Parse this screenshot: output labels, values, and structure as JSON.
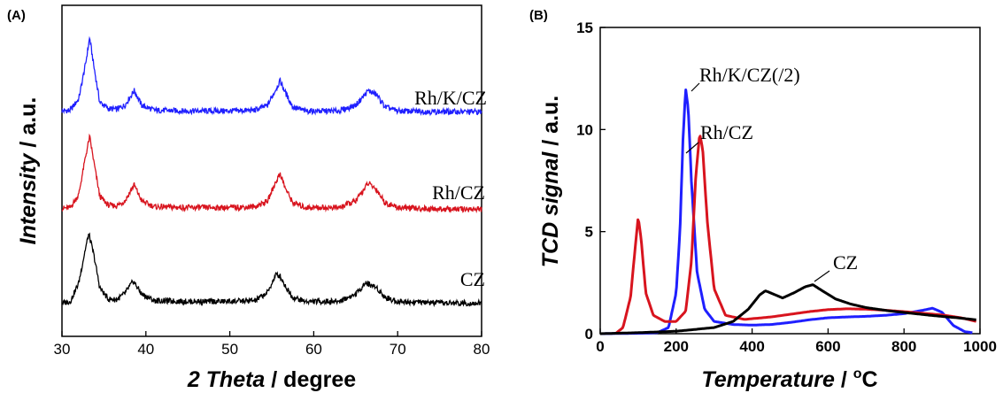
{
  "chart_data": [
    {
      "panel_label": "(A)",
      "type": "line",
      "xlabel_italic": "2 Theta",
      "xlabel_rest": " / degree",
      "ylabel_italic": "Intensity",
      "ylabel_rest": " / a.u.",
      "xlim": [
        30,
        80
      ],
      "xticks": [
        "30",
        "40",
        "50",
        "60",
        "70",
        "80"
      ],
      "y_ticks_shown": false,
      "series": [
        {
          "name": "Rh/K/CZ",
          "color": "#1f1fff",
          "offset": 2,
          "points": [
            [
              30,
              0.05
            ],
            [
              31,
              0.06
            ],
            [
              32,
              0.2
            ],
            [
              32.8,
              0.62
            ],
            [
              33.3,
              0.95
            ],
            [
              33.8,
              0.6
            ],
            [
              34.5,
              0.16
            ],
            [
              35.5,
              0.08
            ],
            [
              36.5,
              0.07
            ],
            [
              37.5,
              0.12
            ],
            [
              38.6,
              0.3
            ],
            [
              39.5,
              0.12
            ],
            [
              41,
              0.06
            ],
            [
              45,
              0.05
            ],
            [
              50,
              0.05
            ],
            [
              53,
              0.06
            ],
            [
              54.5,
              0.12
            ],
            [
              55.5,
              0.32
            ],
            [
              56,
              0.42
            ],
            [
              56.6,
              0.28
            ],
            [
              57.5,
              0.1
            ],
            [
              59,
              0.05
            ],
            [
              63,
              0.05
            ],
            [
              65,
              0.12
            ],
            [
              66.5,
              0.3
            ],
            [
              67.5,
              0.25
            ],
            [
              68.5,
              0.1
            ],
            [
              70,
              0.05
            ],
            [
              75,
              0.04
            ],
            [
              80,
              0.04
            ]
          ]
        },
        {
          "name": "Rh/CZ",
          "color": "#d8141e",
          "offset": 1,
          "points": [
            [
              30,
              0.05
            ],
            [
              31,
              0.06
            ],
            [
              32,
              0.22
            ],
            [
              32.8,
              0.68
            ],
            [
              33.3,
              0.93
            ],
            [
              33.8,
              0.62
            ],
            [
              34.5,
              0.2
            ],
            [
              35.5,
              0.09
            ],
            [
              36.5,
              0.08
            ],
            [
              37.5,
              0.14
            ],
            [
              38.6,
              0.34
            ],
            [
              39.5,
              0.14
            ],
            [
              41,
              0.07
            ],
            [
              45,
              0.06
            ],
            [
              50,
              0.06
            ],
            [
              53,
              0.07
            ],
            [
              54.5,
              0.14
            ],
            [
              55.5,
              0.38
            ],
            [
              56,
              0.48
            ],
            [
              56.6,
              0.3
            ],
            [
              57.5,
              0.12
            ],
            [
              59,
              0.06
            ],
            [
              63,
              0.06
            ],
            [
              65,
              0.14
            ],
            [
              66.5,
              0.36
            ],
            [
              67.5,
              0.28
            ],
            [
              68.5,
              0.12
            ],
            [
              70,
              0.06
            ],
            [
              75,
              0.04
            ],
            [
              80,
              0.04
            ]
          ]
        },
        {
          "name": "CZ",
          "color": "#000000",
          "offset": 0,
          "points": [
            [
              30,
              0.05
            ],
            [
              31,
              0.07
            ],
            [
              32,
              0.3
            ],
            [
              32.8,
              0.72
            ],
            [
              33.2,
              0.9
            ],
            [
              33.8,
              0.64
            ],
            [
              34.5,
              0.24
            ],
            [
              35.5,
              0.1
            ],
            [
              36.5,
              0.09
            ],
            [
              37.5,
              0.17
            ],
            [
              38.5,
              0.32
            ],
            [
              39.5,
              0.16
            ],
            [
              41,
              0.08
            ],
            [
              45,
              0.07
            ],
            [
              50,
              0.07
            ],
            [
              53,
              0.08
            ],
            [
              54.5,
              0.18
            ],
            [
              55.5,
              0.4
            ],
            [
              56,
              0.38
            ],
            [
              56.6,
              0.26
            ],
            [
              57.5,
              0.12
            ],
            [
              59,
              0.07
            ],
            [
              63,
              0.07
            ],
            [
              65,
              0.16
            ],
            [
              66.2,
              0.3
            ],
            [
              67.5,
              0.24
            ],
            [
              68.5,
              0.12
            ],
            [
              70,
              0.07
            ],
            [
              75,
              0.05
            ],
            [
              80,
              0.05
            ]
          ]
        }
      ]
    },
    {
      "panel_label": "(B)",
      "type": "line",
      "xlabel_italic": "Temperature",
      "xlabel_rest": " / ",
      "xlabel_sup": "o",
      "xlabel_unit": "C",
      "ylabel_italic": "TCD signal",
      "ylabel_rest": " / a.u.",
      "xlim": [
        0,
        1000
      ],
      "ylim": [
        0,
        15
      ],
      "xticks": [
        "0",
        "200",
        "400",
        "600",
        "800",
        "1000"
      ],
      "yticks": [
        "0",
        "5",
        "10",
        "15"
      ],
      "series": [
        {
          "name": "Rh/K/CZ(/2)",
          "color": "#1f1fff",
          "points": [
            [
              0,
              0
            ],
            [
              100,
              0.02
            ],
            [
              150,
              0.05
            ],
            [
              180,
              0.3
            ],
            [
              200,
              2
            ],
            [
              210,
              5
            ],
            [
              218,
              9.5
            ],
            [
              225,
              12
            ],
            [
              232,
              11
            ],
            [
              240,
              7.5
            ],
            [
              255,
              3
            ],
            [
              275,
              1.2
            ],
            [
              300,
              0.6
            ],
            [
              350,
              0.45
            ],
            [
              400,
              0.42
            ],
            [
              450,
              0.45
            ],
            [
              500,
              0.55
            ],
            [
              550,
              0.68
            ],
            [
              600,
              0.78
            ],
            [
              650,
              0.82
            ],
            [
              700,
              0.85
            ],
            [
              750,
              0.9
            ],
            [
              800,
              0.98
            ],
            [
              850,
              1.15
            ],
            [
              875,
              1.25
            ],
            [
              900,
              1.05
            ],
            [
              930,
              0.4
            ],
            [
              960,
              0.1
            ],
            [
              980,
              0.05
            ]
          ]
        },
        {
          "name": "Rh/CZ",
          "color": "#d8141e",
          "points": [
            [
              40,
              0
            ],
            [
              60,
              0.3
            ],
            [
              80,
              1.8
            ],
            [
              92,
              4.2
            ],
            [
              100,
              5.7
            ],
            [
              108,
              4.6
            ],
            [
              120,
              2
            ],
            [
              140,
              0.9
            ],
            [
              170,
              0.6
            ],
            [
              200,
              0.6
            ],
            [
              225,
              1.1
            ],
            [
              240,
              3.5
            ],
            [
              252,
              7.8
            ],
            [
              262,
              9.8
            ],
            [
              270,
              9
            ],
            [
              282,
              5.5
            ],
            [
              300,
              2.2
            ],
            [
              330,
              0.9
            ],
            [
              380,
              0.7
            ],
            [
              450,
              0.82
            ],
            [
              500,
              0.95
            ],
            [
              550,
              1.08
            ],
            [
              600,
              1.18
            ],
            [
              650,
              1.22
            ],
            [
              700,
              1.2
            ],
            [
              750,
              1.15
            ],
            [
              800,
              1.08
            ],
            [
              850,
              1
            ],
            [
              900,
              0.92
            ],
            [
              950,
              0.78
            ],
            [
              990,
              0.6
            ]
          ]
        },
        {
          "name": "CZ",
          "color": "#000000",
          "points": [
            [
              0,
              0
            ],
            [
              100,
              0.05
            ],
            [
              200,
              0.12
            ],
            [
              300,
              0.3
            ],
            [
              350,
              0.6
            ],
            [
              390,
              1.2
            ],
            [
              420,
              1.9
            ],
            [
              435,
              2.1
            ],
            [
              455,
              1.95
            ],
            [
              480,
              1.75
            ],
            [
              510,
              2
            ],
            [
              540,
              2.3
            ],
            [
              560,
              2.4
            ],
            [
              585,
              2.1
            ],
            [
              620,
              1.7
            ],
            [
              660,
              1.45
            ],
            [
              700,
              1.28
            ],
            [
              760,
              1.12
            ],
            [
              820,
              1.0
            ],
            [
              880,
              0.88
            ],
            [
              940,
              0.78
            ],
            [
              990,
              0.68
            ]
          ]
        }
      ],
      "annotations": [
        "Rh/K/CZ(/2)",
        "Rh/CZ",
        "CZ"
      ]
    }
  ]
}
